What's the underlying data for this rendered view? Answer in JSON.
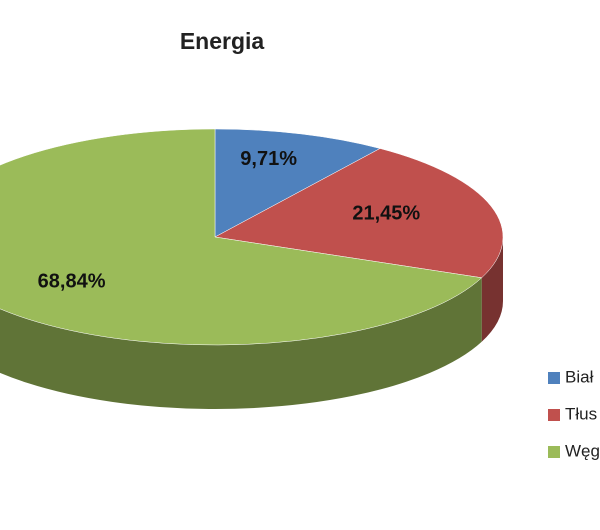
{
  "chart_data": {
    "type": "pie",
    "title": "Energia",
    "categories": [
      "Biał",
      "Tłus",
      "Węg"
    ],
    "values": [
      9.71,
      21.45,
      68.84
    ],
    "value_labels": [
      "9,71%",
      "21,45%",
      "68,84%"
    ],
    "colors": [
      "#4f81bd",
      "#c0504d",
      "#9bbb59"
    ]
  }
}
